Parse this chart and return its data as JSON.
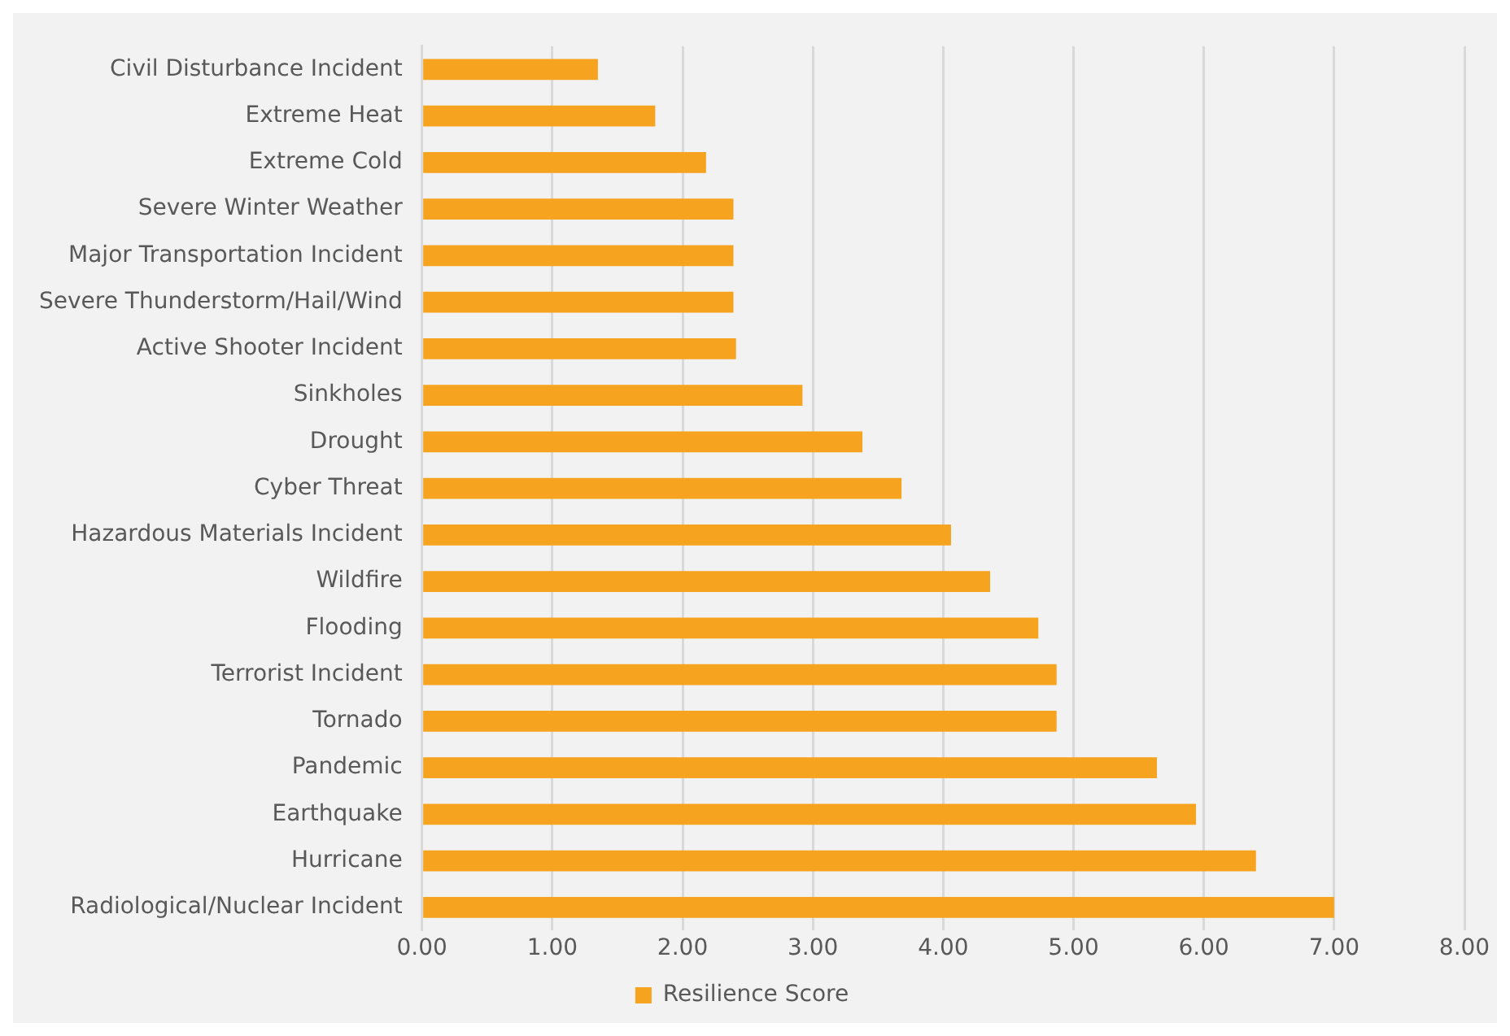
{
  "chart_data": {
    "type": "bar",
    "orientation": "horizontal",
    "categories": [
      "Civil Disturbance Incident",
      "Extreme Heat",
      "Extreme Cold",
      "Severe Winter Weather",
      "Major Transportation Incident",
      "Severe Thunderstorm/Hail/Wind",
      "Active Shooter Incident",
      "Sinkholes",
      "Drought",
      "Cyber Threat",
      "Hazardous Materials Incident",
      "Wildfire",
      "Flooding",
      "Terrorist Incident",
      "Tornado",
      "Pandemic",
      "Earthquake",
      "Hurricane",
      "Radiological/Nuclear Incident"
    ],
    "series": [
      {
        "name": "Resilience Score",
        "color": "#f6a31f",
        "values": [
          1.35,
          1.79,
          2.18,
          2.39,
          2.39,
          2.39,
          2.41,
          2.92,
          3.38,
          3.68,
          4.06,
          4.36,
          4.73,
          4.87,
          4.87,
          5.64,
          5.94,
          6.4,
          7.0
        ]
      }
    ],
    "xlim": [
      0,
      8
    ],
    "xticks": [
      {
        "value": 0,
        "label": "0.00"
      },
      {
        "value": 1,
        "label": "1.00"
      },
      {
        "value": 2,
        "label": "2.00"
      },
      {
        "value": 3,
        "label": "3.00"
      },
      {
        "value": 4,
        "label": "4.00"
      },
      {
        "value": 5,
        "label": "5.00"
      },
      {
        "value": 6,
        "label": "6.00"
      },
      {
        "value": 7,
        "label": "7.00"
      },
      {
        "value": 8,
        "label": "8.00"
      }
    ],
    "grid": "x",
    "legend": "bottom"
  }
}
